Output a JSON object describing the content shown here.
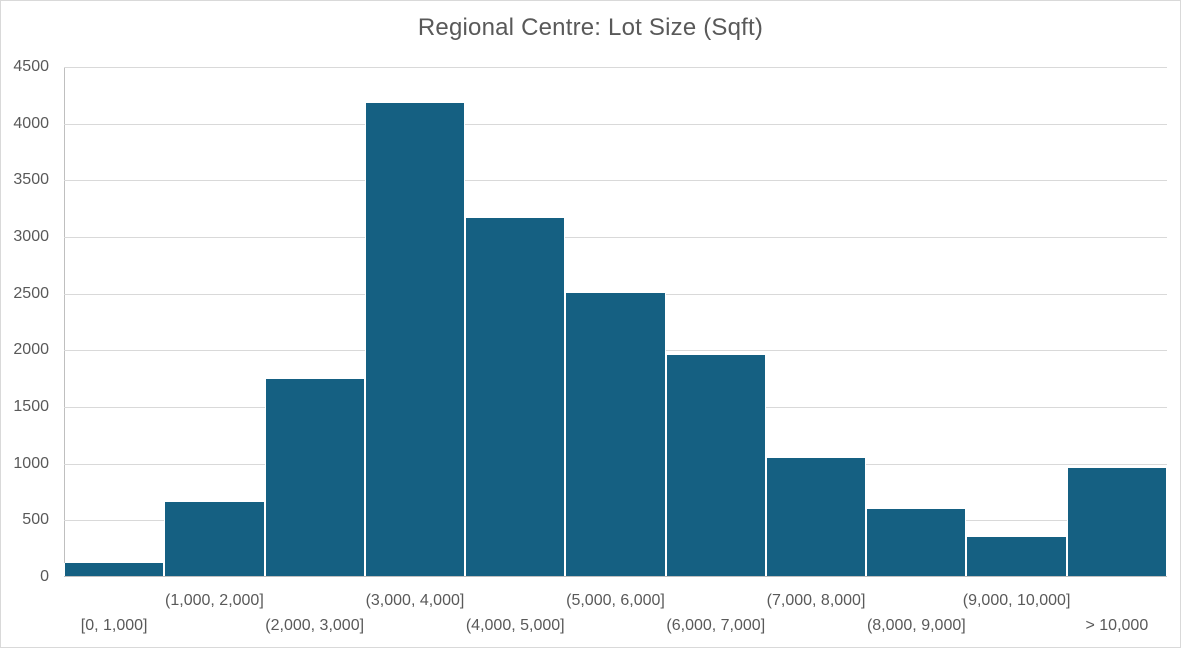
{
  "chart_data": {
    "type": "bar",
    "title": "Regional Centre: Lot Size (Sqft)",
    "categories": [
      "[0, 1,000]",
      "(1,000, 2,000]",
      "(2,000, 3,000]",
      "(3,000, 4,000]",
      "(4,000, 5,000]",
      "(5,000, 6,000]",
      "(6,000, 7,000]",
      "(7,000, 8,000]",
      "(8,000, 9,000]",
      "(9,000, 10,000]",
      "> 10,000"
    ],
    "values": [
      120,
      660,
      1750,
      4180,
      3170,
      2510,
      1960,
      1050,
      600,
      350,
      965
    ],
    "xlabel": "",
    "ylabel": "",
    "ylim": [
      0,
      4500
    ],
    "yticks": [
      0,
      500,
      1000,
      1500,
      2000,
      2500,
      3000,
      3500,
      4000,
      4500
    ],
    "grid": "horizontal-only",
    "legend": "none",
    "x_label_stagger": "odd-bins-upper-row, even-bins-lower-row",
    "bar_gap": "none (histogram, thin white separators)"
  },
  "colors": {
    "bar_fill": "#156082",
    "gridline": "#D9D9D9",
    "axis_line": "#BFBFBF",
    "text": "#595959",
    "chart_border": "#D9D9D9",
    "background": "#FFFFFF"
  }
}
